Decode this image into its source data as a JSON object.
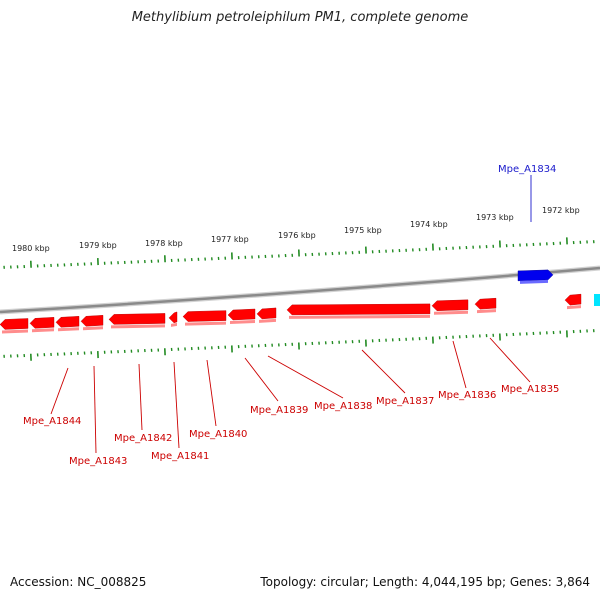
{
  "title": "Methylibium petroleiphilum PM1, complete genome",
  "footer": {
    "accession": "Accession: NC_008825",
    "summary": "Topology: circular; Length: 4,044,195 bp; Genes: 3,864"
  },
  "colors": {
    "reverse_gene": "#ff0000",
    "forward_gene": "#0000ee",
    "label_reverse": "#cc0000",
    "label_forward": "#1a1acc",
    "tick": "#228b22",
    "backbone": "#8a8a8a",
    "extra_gene": "#00e5ff"
  },
  "kbp_labels": [
    "1980 kbp",
    "1979 kbp",
    "1978 kbp",
    "1977 kbp",
    "1976 kbp",
    "1975 kbp",
    "1974 kbp",
    "1973 kbp",
    "1972 kbp"
  ],
  "genes": [
    {
      "label": "Mpe_A1834",
      "strand": "forward"
    },
    {
      "label": "Mpe_A1835",
      "strand": "reverse"
    },
    {
      "label": "Mpe_A1836",
      "strand": "reverse"
    },
    {
      "label": "Mpe_A1837",
      "strand": "reverse"
    },
    {
      "label": "Mpe_A1838",
      "strand": "reverse"
    },
    {
      "label": "Mpe_A1839",
      "strand": "reverse"
    },
    {
      "label": "Mpe_A1840",
      "strand": "reverse"
    },
    {
      "label": "Mpe_A1841",
      "strand": "reverse"
    },
    {
      "label": "Mpe_A1842",
      "strand": "reverse"
    },
    {
      "label": "Mpe_A1843",
      "strand": "reverse"
    },
    {
      "label": "Mpe_A1844",
      "strand": "reverse"
    }
  ]
}
